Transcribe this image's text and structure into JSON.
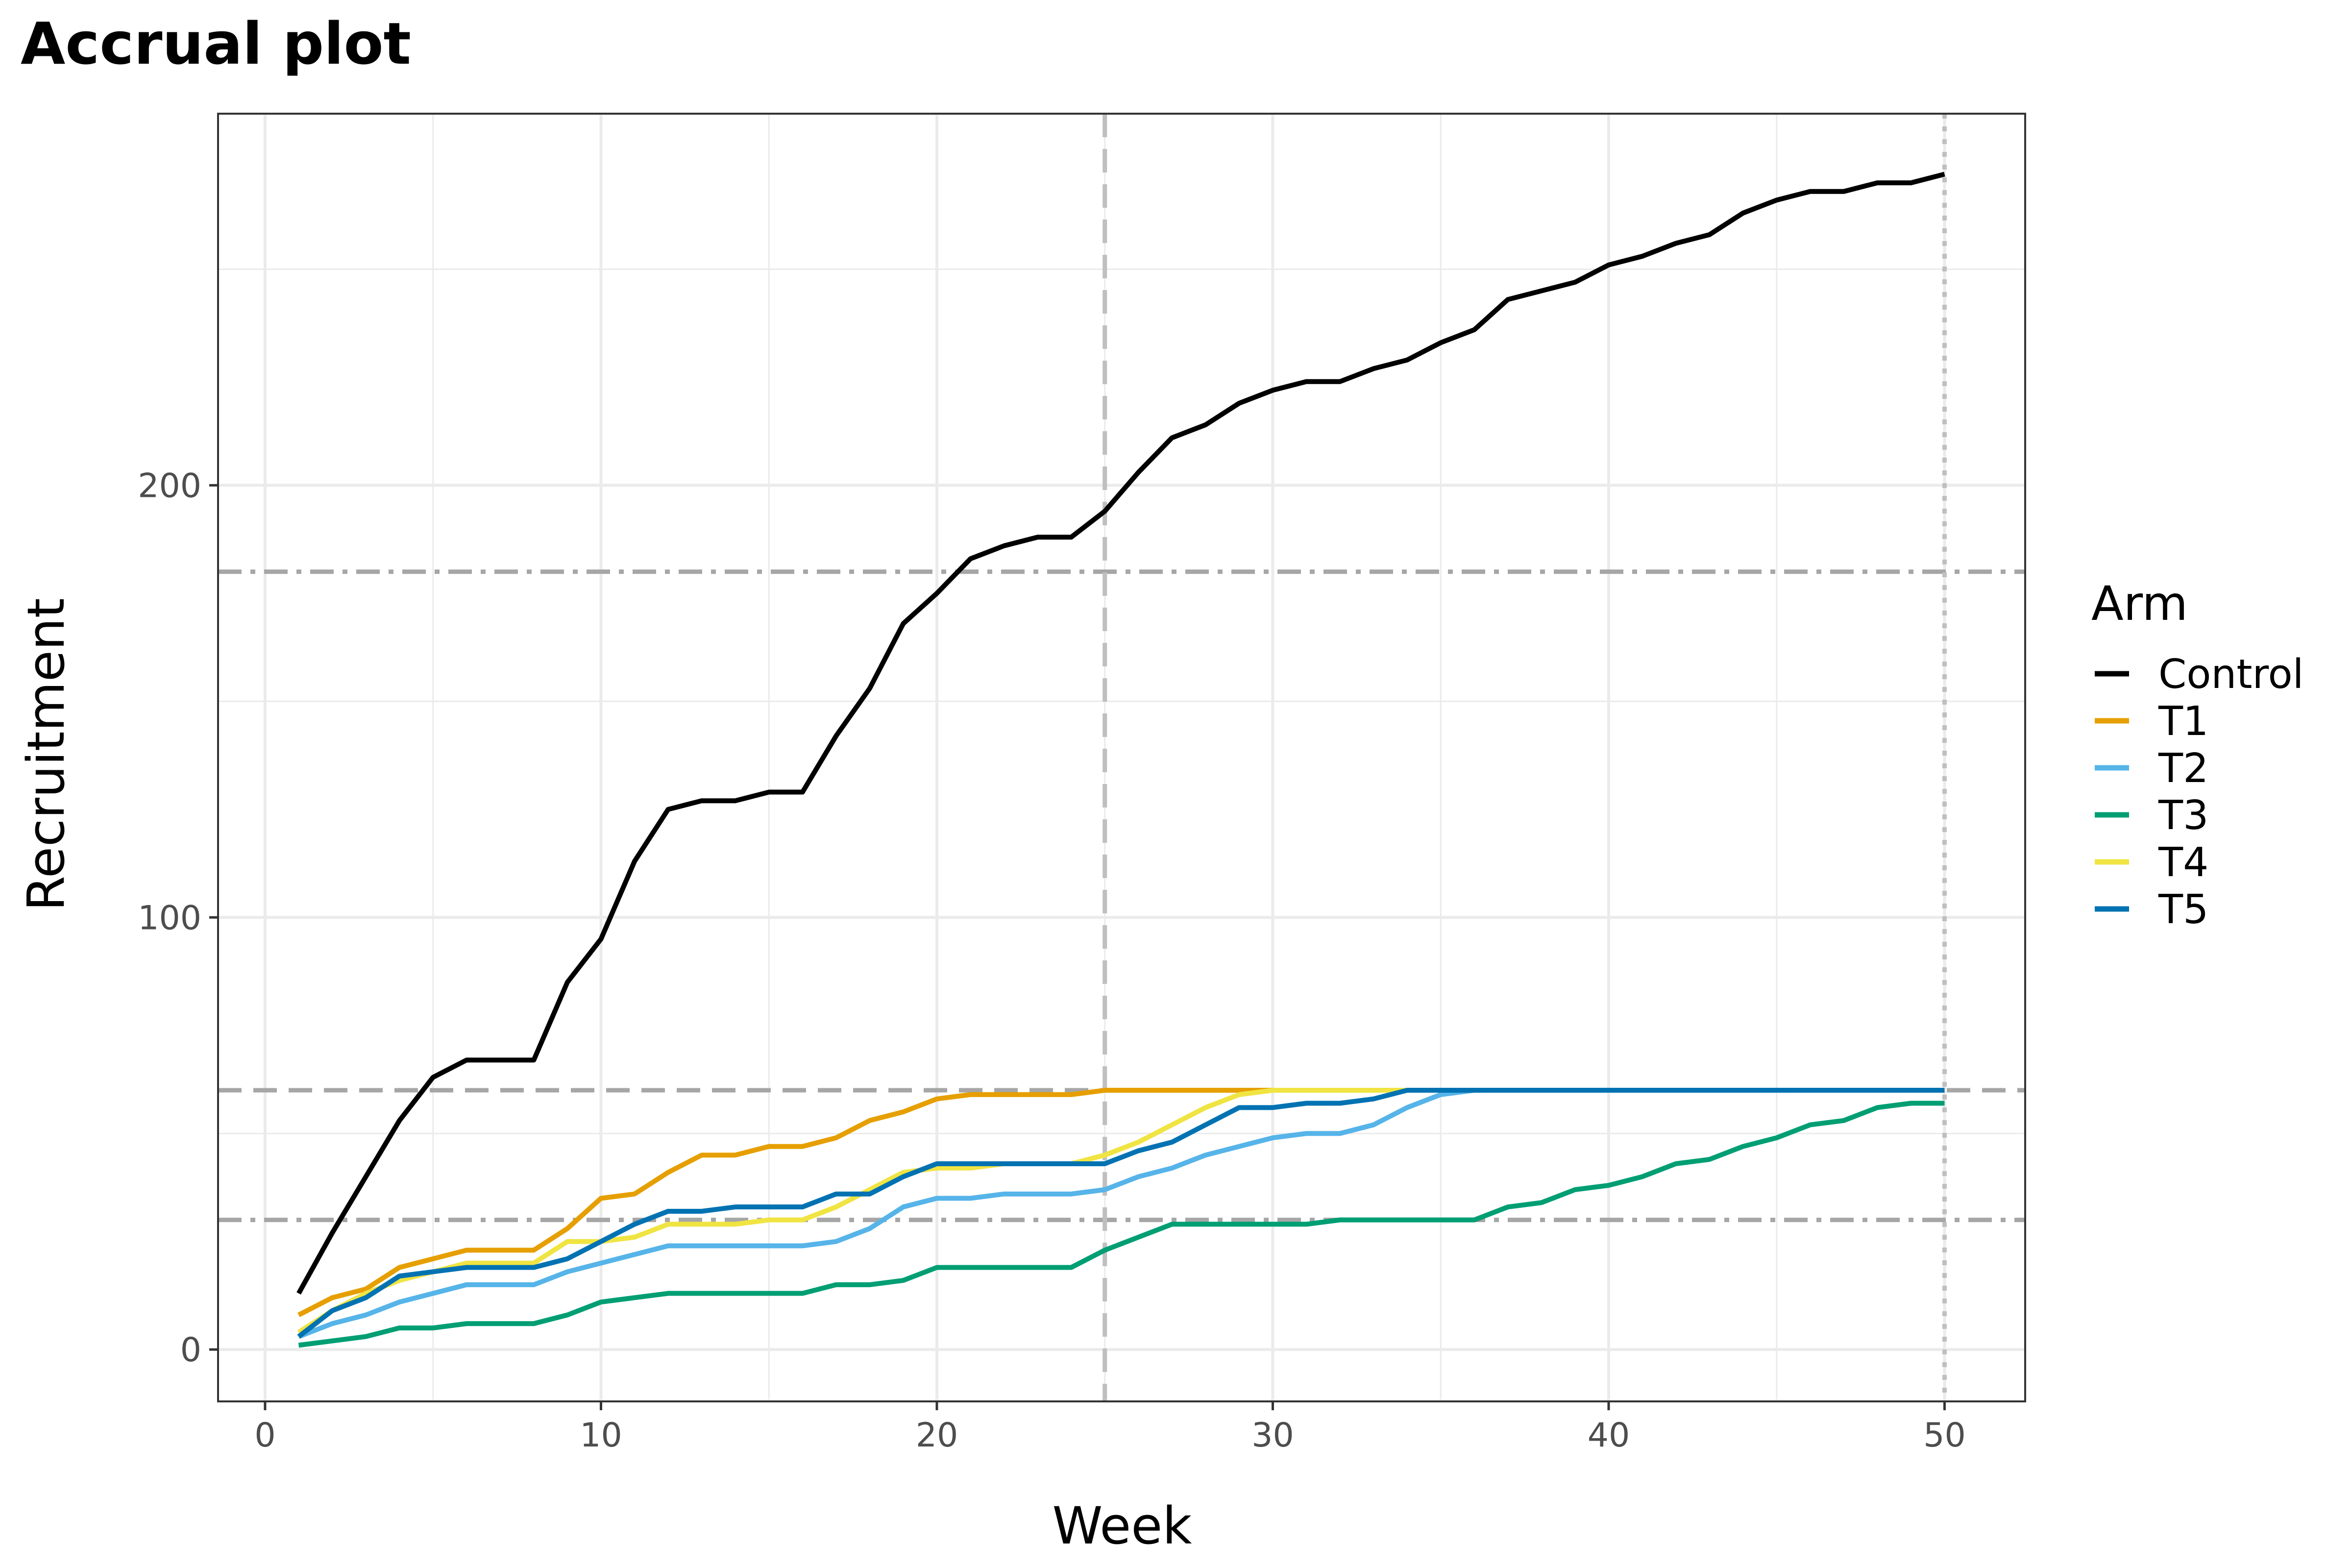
{
  "chart_data": {
    "type": "line",
    "title": "Accrual plot",
    "xlabel": "Week",
    "ylabel": "Recruitment",
    "xlim": [
      -1.4,
      52.4
    ],
    "ylim": [
      -12,
      286
    ],
    "x_ticks": [
      0,
      10,
      20,
      30,
      40,
      50
    ],
    "y_ticks": [
      0,
      100,
      200
    ],
    "grid": true,
    "legend": {
      "title": "Arm",
      "position": "right"
    },
    "reference_lines": [
      {
        "orientation": "horizontal",
        "value": 180,
        "style": "dotdash",
        "color": "#a6a6a6"
      },
      {
        "orientation": "horizontal",
        "value": 60,
        "style": "dashed",
        "color": "#a6a6a6"
      },
      {
        "orientation": "horizontal",
        "value": 30,
        "style": "dotdash",
        "color": "#a6a6a6"
      },
      {
        "orientation": "vertical",
        "value": 25,
        "style": "dashed",
        "color": "#bfbfbf"
      },
      {
        "orientation": "vertical",
        "value": 50,
        "style": "dotted",
        "color": "#bfbfbf"
      }
    ],
    "x": [
      1,
      2,
      3,
      4,
      5,
      6,
      7,
      8,
      9,
      10,
      11,
      12,
      13,
      14,
      15,
      16,
      17,
      18,
      19,
      20,
      21,
      22,
      23,
      24,
      25,
      26,
      27,
      28,
      29,
      30,
      31,
      32,
      33,
      34,
      35,
      36,
      37,
      38,
      39,
      40,
      41,
      42,
      43,
      44,
      45,
      46,
      47,
      48,
      49,
      50
    ],
    "series": [
      {
        "name": "Control",
        "color": "#000000",
        "values": [
          13,
          27,
          40,
          53,
          63,
          67,
          67,
          67,
          85,
          95,
          113,
          125,
          127,
          127,
          129,
          129,
          142,
          153,
          168,
          175,
          183,
          186,
          188,
          188,
          194,
          203,
          211,
          214,
          219,
          222,
          224,
          224,
          227,
          229,
          233,
          236,
          243,
          245,
          247,
          251,
          253,
          256,
          258,
          263,
          266,
          268,
          268,
          270,
          270,
          272
        ]
      },
      {
        "name": "T1",
        "color": "#E69F00",
        "values": [
          8,
          12,
          14,
          19,
          21,
          23,
          23,
          23,
          28,
          35,
          36,
          41,
          45,
          45,
          47,
          47,
          49,
          53,
          55,
          58,
          59,
          59,
          59,
          59,
          60,
          60,
          60,
          60,
          60,
          60,
          60,
          60,
          60,
          60,
          60,
          60,
          60,
          60,
          60,
          60,
          60,
          60,
          60,
          60,
          60,
          60,
          60,
          60,
          60,
          60
        ]
      },
      {
        "name": "T2",
        "color": "#56B4E9",
        "values": [
          3,
          6,
          8,
          11,
          13,
          15,
          15,
          15,
          18,
          20,
          22,
          24,
          24,
          24,
          24,
          24,
          25,
          28,
          33,
          35,
          35,
          36,
          36,
          36,
          37,
          40,
          42,
          45,
          47,
          49,
          50,
          50,
          52,
          56,
          59,
          60,
          60,
          60,
          60,
          60,
          60,
          60,
          60,
          60,
          60,
          60,
          60,
          60,
          60,
          60
        ]
      },
      {
        "name": "T3",
        "color": "#009E73",
        "values": [
          1,
          2,
          3,
          5,
          5,
          6,
          6,
          6,
          8,
          11,
          12,
          13,
          13,
          13,
          13,
          13,
          15,
          15,
          16,
          19,
          19,
          19,
          19,
          19,
          23,
          26,
          29,
          29,
          29,
          29,
          29,
          30,
          30,
          30,
          30,
          30,
          33,
          34,
          37,
          38,
          40,
          43,
          44,
          47,
          49,
          52,
          53,
          56,
          57,
          57
        ]
      },
      {
        "name": "T4",
        "color": "#F0E442",
        "values": [
          4,
          9,
          13,
          16,
          18,
          20,
          20,
          20,
          25,
          25,
          26,
          29,
          29,
          29,
          30,
          30,
          33,
          37,
          41,
          42,
          42,
          43,
          43,
          43,
          45,
          48,
          52,
          56,
          59,
          60,
          60,
          60,
          60,
          60,
          60,
          60,
          60,
          60,
          60,
          60,
          60,
          60,
          60,
          60,
          60,
          60,
          60,
          60,
          60,
          60
        ]
      },
      {
        "name": "T5",
        "color": "#0072B2",
        "values": [
          3,
          9,
          12,
          17,
          18,
          19,
          19,
          19,
          21,
          25,
          29,
          32,
          32,
          33,
          33,
          33,
          36,
          36,
          40,
          43,
          43,
          43,
          43,
          43,
          43,
          46,
          48,
          52,
          56,
          56,
          57,
          57,
          58,
          60,
          60,
          60,
          60,
          60,
          60,
          60,
          60,
          60,
          60,
          60,
          60,
          60,
          60,
          60,
          60,
          60
        ]
      }
    ]
  }
}
